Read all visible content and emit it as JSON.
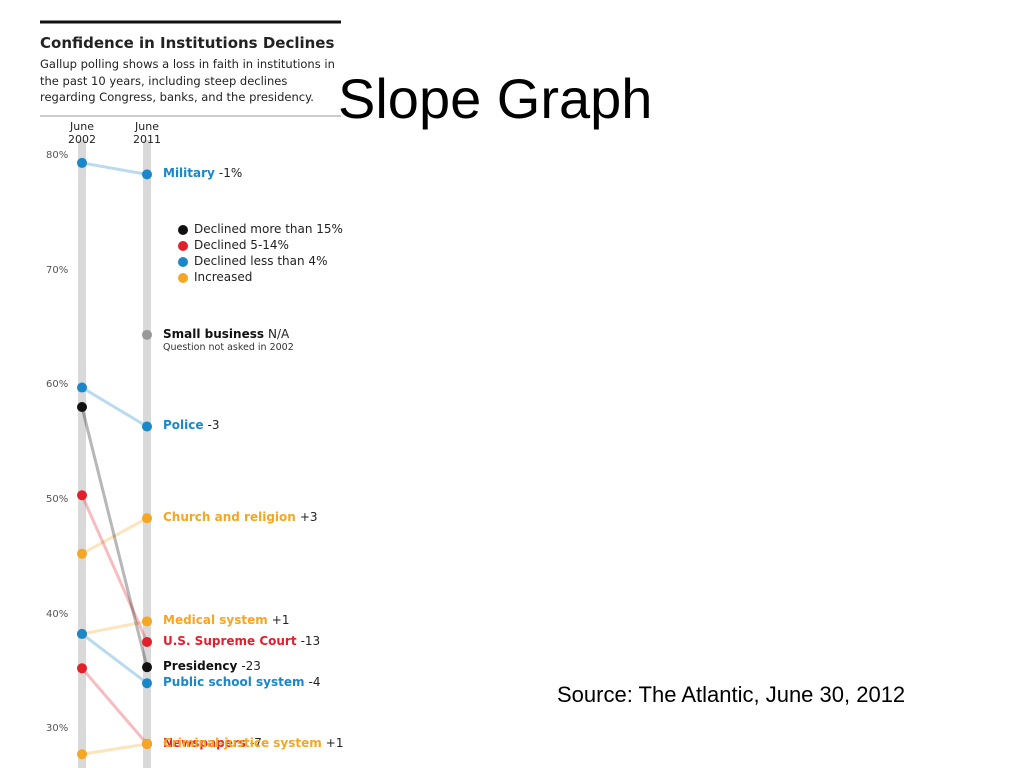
{
  "slide": {
    "title": "Slope Graph",
    "source": "Source: The Atlantic, June 30, 2012"
  },
  "chart_data": {
    "type": "slope",
    "title": "Confidence in Institutions Declines",
    "subtitle": "Gallup polling shows a loss in faith in institutions in the past 10 years, including steep declines regarding Congress, banks, and the presidency.",
    "x": [
      "June 2002",
      "June 2011"
    ],
    "ylim": [
      26.7,
      81.5
    ],
    "yticks": [
      {
        "value": 80,
        "label": "80%"
      },
      {
        "value": 70,
        "label": "70%"
      },
      {
        "value": 60,
        "label": "60%"
      },
      {
        "value": 50,
        "label": "50%"
      },
      {
        "value": 40,
        "label": "40%"
      },
      {
        "value": 30,
        "label": "30%"
      }
    ],
    "legend": [
      {
        "name": "Declined more than 15%",
        "color": "#111111"
      },
      {
        "name": "Declined 5-14%",
        "color": "#e2202c"
      },
      {
        "name": "Declined less than 4%",
        "color": "#1a87c9"
      },
      {
        "name": "Increased",
        "color": "#f5a623"
      }
    ],
    "series": [
      {
        "name": "Military",
        "change": "-1%",
        "color": "#1a87c9",
        "values": [
          79.5,
          78.5
        ]
      },
      {
        "name": "Small business",
        "change": "N/A",
        "note": "Question not asked in 2002",
        "color": "#999999",
        "values": [
          null,
          64.5
        ]
      },
      {
        "name": "Police",
        "change": "-3",
        "color": "#1a87c9",
        "values": [
          59.9,
          56.5
        ]
      },
      {
        "name": "Church and religion",
        "change": "+3",
        "color": "#f5a623",
        "values": [
          45.4,
          48.5
        ]
      },
      {
        "name": "Medical system",
        "change": "+1",
        "color": "#f5a623",
        "values": [
          38.4,
          39.5
        ]
      },
      {
        "name": "U.S. Supreme Court",
        "change": "-13",
        "color": "#e2202c",
        "values": [
          50.5,
          37.7
        ]
      },
      {
        "name": "Presidency",
        "change": "-23",
        "color": "#111111",
        "values": [
          58.2,
          35.5
        ]
      },
      {
        "name": "Public school system",
        "change": "-4",
        "color": "#1a87c9",
        "values": [
          38.4,
          34.1
        ]
      },
      {
        "name": "Newspapers",
        "change": "-7",
        "color": "#e2202c",
        "values": [
          35.4,
          28.8
        ]
      },
      {
        "name": "Criminal-justice system",
        "change": "+1",
        "color": "#f5a623",
        "values": [
          27.9,
          28.8
        ]
      }
    ]
  }
}
